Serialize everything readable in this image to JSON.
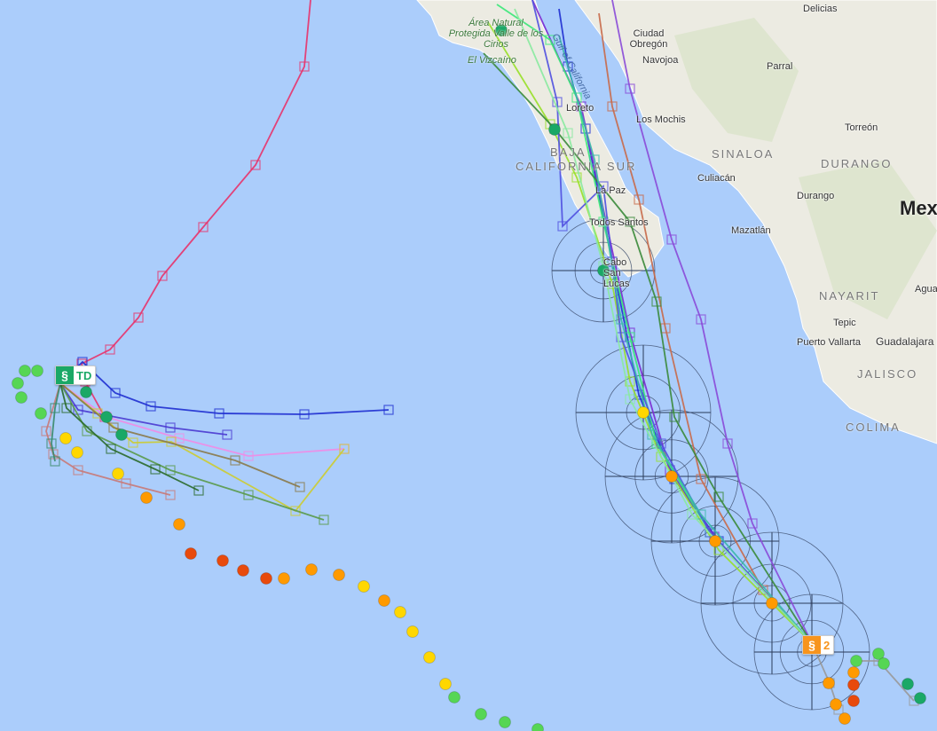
{
  "map": {
    "places": [
      "Delicias",
      "Ciudad Obregón",
      "Navojoa",
      "Parral",
      "Los Mochis",
      "Torreón",
      "Culiacán",
      "Durango",
      "Mazatlán",
      "La Paz",
      "Todos Santos",
      "Cabo San Lucas",
      "Loreto",
      "Tepic",
      "Puerto Vallarta",
      "Guadalajara",
      "Agua"
    ],
    "states": [
      "SINALOA",
      "DURANGO",
      "BAJA",
      "CALIFORNIA SUR",
      "NAYARIT",
      "JALISCO",
      "COLIMA"
    ],
    "parks": [
      "Área Natural Protegida Valle de los Cirios",
      "El Vizcaíno"
    ],
    "water": "Gulf of California",
    "country": "Mex"
  },
  "storms": [
    {
      "label": "TD",
      "icon": "hurricane-icon",
      "color": "#1aa866"
    },
    {
      "label": "2",
      "icon": "hurricane-icon",
      "color": "#f7941d"
    }
  ],
  "colors": {
    "ocean": "#abcdfb",
    "land": "#eeeee6",
    "td": "#56d654",
    "ts": "#ffd700",
    "cat1": "#ff9a00",
    "cat2": "#e84a0c"
  }
}
